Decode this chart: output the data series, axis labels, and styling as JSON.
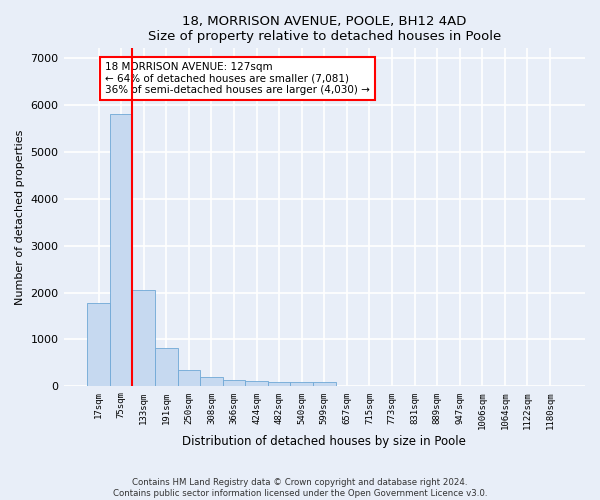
{
  "title1": "18, MORRISON AVENUE, POOLE, BH12 4AD",
  "title2": "Size of property relative to detached houses in Poole",
  "xlabel": "Distribution of detached houses by size in Poole",
  "ylabel": "Number of detached properties",
  "bar_color": "#c6d9f0",
  "bar_edge_color": "#6fa8d6",
  "vline_color": "red",
  "vline_x": 1.5,
  "annotation_text": "18 MORRISON AVENUE: 127sqm\n← 64% of detached houses are smaller (7,081)\n36% of semi-detached houses are larger (4,030) →",
  "annotation_box_color": "white",
  "annotation_box_edge": "red",
  "categories": [
    "17sqm",
    "75sqm",
    "133sqm",
    "191sqm",
    "250sqm",
    "308sqm",
    "366sqm",
    "424sqm",
    "482sqm",
    "540sqm",
    "599sqm",
    "657sqm",
    "715sqm",
    "773sqm",
    "831sqm",
    "889sqm",
    "947sqm",
    "1006sqm",
    "1064sqm",
    "1122sqm",
    "1180sqm"
  ],
  "values": [
    1780,
    5800,
    2060,
    820,
    340,
    195,
    130,
    115,
    105,
    85,
    85,
    0,
    0,
    0,
    0,
    0,
    0,
    0,
    0,
    0,
    0
  ],
  "ylim": [
    0,
    7200
  ],
  "yticks": [
    0,
    1000,
    2000,
    3000,
    4000,
    5000,
    6000,
    7000
  ],
  "footer1": "Contains HM Land Registry data © Crown copyright and database right 2024.",
  "footer2": "Contains public sector information licensed under the Open Government Licence v3.0.",
  "bg_color": "#e8eef8",
  "plot_bg_color": "#e8eef8",
  "grid_color": "white"
}
